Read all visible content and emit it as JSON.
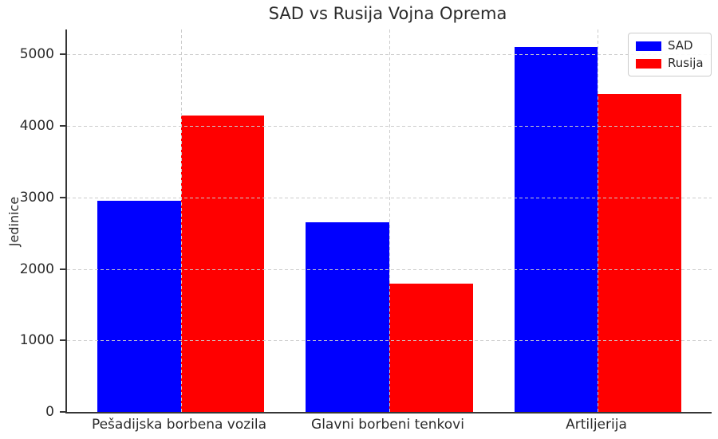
{
  "chart_data": {
    "type": "bar",
    "title": "SAD vs Rusija Vojna Oprema",
    "xlabel": "",
    "ylabel": "Jedinice",
    "categories": [
      "Pešadijska borbena vozila",
      "Glavni borbeni tenkovi",
      "Artiljerija"
    ],
    "series": [
      {
        "name": "SAD",
        "color": "#0000ff",
        "values": [
          2950,
          2650,
          5100
        ]
      },
      {
        "name": "Rusija",
        "color": "#ff0000",
        "values": [
          4150,
          1800,
          4450
        ]
      }
    ],
    "yticks": [
      0,
      1000,
      2000,
      3000,
      4000,
      5000
    ],
    "ylim": [
      0,
      5350
    ],
    "xlim": [
      -0.545,
      2.545
    ],
    "bar_width": 0.4,
    "grid": {
      "show": true,
      "color": "#cccccc",
      "style": "dashed",
      "drawn_above_bars": true
    },
    "legend": {
      "position": "upper-right",
      "items": [
        "SAD",
        "Rusija"
      ]
    }
  },
  "colors": {
    "background": "#ffffff",
    "text": "#2b2b2b",
    "spine": "#363636",
    "grid": "#cccccc",
    "sad_bar": "#0000ff",
    "rusija_bar": "#ff0000",
    "legend_border": "#cccccc"
  }
}
